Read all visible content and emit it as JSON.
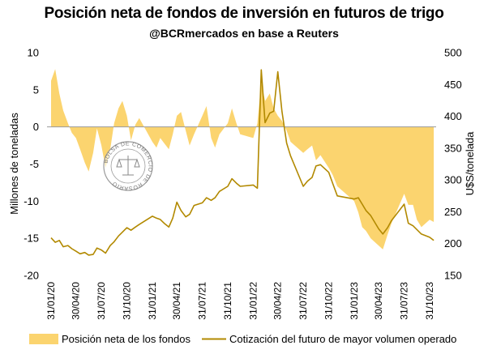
{
  "chart_data": {
    "type": "area+line",
    "title": "Posición neta de fondos de inversión en futuros de trigo",
    "subtitle": "@BCRmercados en base a Reuters",
    "ylabel_left": "Millones de toneladas",
    "ylabel_right": "U$S/tonelada",
    "ylim_left": [
      -20,
      10
    ],
    "ylim_right": [
      150,
      500
    ],
    "yticks_left": [
      "10",
      "5",
      "0",
      "-5",
      "-10",
      "-15",
      "-20"
    ],
    "yticks_right": [
      "500",
      "450",
      "400",
      "350",
      "300",
      "250",
      "200",
      "150"
    ],
    "xtick_labels": [
      "31/01/20",
      "30/04/20",
      "31/07/20",
      "31/10/20",
      "31/01/21",
      "30/04/21",
      "31/07/21",
      "31/10/21",
      "31/01/22",
      "30/04/22",
      "31/07/22",
      "31/10/22",
      "31/01/23",
      "30/04/23",
      "31/07/23",
      "31/10/23"
    ],
    "grid": false,
    "legend_position": "bottom",
    "colors": {
      "fill": "#FBD46F",
      "line": "#B28900"
    },
    "series": [
      {
        "name": "Posición neta de los fondos",
        "type": "area",
        "axis": "left",
        "points": [
          [
            "31/01/20",
            6.2
          ],
          [
            "15/02/20",
            7.8
          ],
          [
            "01/03/20",
            4.5
          ],
          [
            "15/03/20",
            2.2
          ],
          [
            "01/04/20",
            0.5
          ],
          [
            "15/04/20",
            -0.8
          ],
          [
            "30/04/20",
            -1.5
          ],
          [
            "15/05/20",
            -3.0
          ],
          [
            "01/06/20",
            -4.8
          ],
          [
            "15/06/20",
            -6.0
          ],
          [
            "01/07/20",
            -3.5
          ],
          [
            "15/07/20",
            -0.2
          ],
          [
            "31/07/20",
            -2.5
          ],
          [
            "15/08/20",
            -5.5
          ],
          [
            "01/09/20",
            -3.0
          ],
          [
            "15/09/20",
            0.5
          ],
          [
            "01/10/20",
            2.5
          ],
          [
            "15/10/20",
            3.5
          ],
          [
            "31/10/20",
            1.5
          ],
          [
            "15/11/20",
            -1.8
          ],
          [
            "01/12/20",
            0.3
          ],
          [
            "15/12/20",
            1.2
          ],
          [
            "31/01/21",
            -2.0
          ],
          [
            "15/02/21",
            -2.8
          ],
          [
            "01/03/21",
            -1.5
          ],
          [
            "15/03/21",
            -2.2
          ],
          [
            "01/04/21",
            -3.0
          ],
          [
            "15/04/21",
            -1.0
          ],
          [
            "30/04/21",
            1.5
          ],
          [
            "15/05/21",
            2.0
          ],
          [
            "01/06/21",
            -0.5
          ],
          [
            "15/06/21",
            -2.5
          ],
          [
            "01/07/21",
            -1.0
          ],
          [
            "31/07/21",
            1.5
          ],
          [
            "15/08/21",
            2.8
          ],
          [
            "01/09/21",
            -1.5
          ],
          [
            "15/09/21",
            -2.8
          ],
          [
            "01/10/21",
            -1.0
          ],
          [
            "31/10/21",
            0.5
          ],
          [
            "15/11/21",
            2.5
          ],
          [
            "01/12/21",
            0.5
          ],
          [
            "15/12/21",
            -1.0
          ],
          [
            "31/01/22",
            -1.5
          ],
          [
            "15/02/22",
            0.5
          ],
          [
            "01/03/22",
            6.0
          ],
          [
            "15/03/22",
            3.5
          ],
          [
            "01/04/22",
            4.5
          ],
          [
            "15/04/22",
            2.5
          ],
          [
            "30/04/22",
            1.5
          ],
          [
            "15/05/22",
            0.8
          ],
          [
            "01/06/22",
            -0.5
          ],
          [
            "15/06/22",
            -2.0
          ],
          [
            "31/07/22",
            -3.5
          ],
          [
            "15/08/22",
            -3.0
          ],
          [
            "01/09/22",
            -2.5
          ],
          [
            "15/09/22",
            -4.5
          ],
          [
            "01/10/22",
            -3.8
          ],
          [
            "31/10/22",
            -5.5
          ],
          [
            "15/11/22",
            -6.5
          ],
          [
            "01/12/22",
            -8.0
          ],
          [
            "31/01/23",
            -10.0
          ],
          [
            "15/02/23",
            -11.5
          ],
          [
            "01/03/23",
            -13.5
          ],
          [
            "15/03/23",
            -14.0
          ],
          [
            "01/04/23",
            -15.0
          ],
          [
            "30/04/23",
            -16.0
          ],
          [
            "15/05/23",
            -16.5
          ],
          [
            "01/06/23",
            -14.5
          ],
          [
            "15/06/23",
            -13.0
          ],
          [
            "31/07/23",
            -9.0
          ],
          [
            "15/08/23",
            -10.5
          ],
          [
            "01/09/23",
            -10.5
          ],
          [
            "15/09/23",
            -12.5
          ],
          [
            "01/10/23",
            -13.5
          ],
          [
            "31/10/23",
            -12.5
          ],
          [
            "15/11/23",
            -12.8
          ]
        ]
      },
      {
        "name": "Cotización del futuro de mayor volumen operado",
        "type": "line",
        "axis": "right",
        "points": [
          [
            "31/01/20",
            209
          ],
          [
            "15/02/20",
            202
          ],
          [
            "01/03/20",
            205
          ],
          [
            "15/03/20",
            195
          ],
          [
            "01/04/20",
            197
          ],
          [
            "15/04/20",
            192
          ],
          [
            "30/04/20",
            188
          ],
          [
            "15/05/20",
            184
          ],
          [
            "01/06/20",
            186
          ],
          [
            "15/06/20",
            182
          ],
          [
            "01/07/20",
            183
          ],
          [
            "15/07/20",
            193
          ],
          [
            "31/07/20",
            190
          ],
          [
            "15/08/20",
            185
          ],
          [
            "01/09/20",
            197
          ],
          [
            "15/09/20",
            203
          ],
          [
            "01/10/20",
            212
          ],
          [
            "15/10/20",
            218
          ],
          [
            "31/10/20",
            225
          ],
          [
            "15/11/20",
            221
          ],
          [
            "01/12/20",
            226
          ],
          [
            "15/12/20",
            230
          ],
          [
            "31/01/21",
            243
          ],
          [
            "15/02/21",
            240
          ],
          [
            "01/03/21",
            238
          ],
          [
            "15/03/21",
            232
          ],
          [
            "01/04/21",
            226
          ],
          [
            "15/04/21",
            240
          ],
          [
            "30/04/21",
            265
          ],
          [
            "15/05/21",
            252
          ],
          [
            "01/06/21",
            242
          ],
          [
            "15/06/21",
            246
          ],
          [
            "01/07/21",
            260
          ],
          [
            "31/07/21",
            264
          ],
          [
            "15/08/21",
            272
          ],
          [
            "01/09/21",
            268
          ],
          [
            "15/09/21",
            272
          ],
          [
            "01/10/21",
            282
          ],
          [
            "31/10/21",
            290
          ],
          [
            "15/11/21",
            302
          ],
          [
            "01/12/21",
            295
          ],
          [
            "15/12/21",
            290
          ],
          [
            "31/01/22",
            292
          ],
          [
            "15/02/22",
            287
          ],
          [
            "01/03/22",
            473
          ],
          [
            "15/03/22",
            390
          ],
          [
            "01/04/22",
            405
          ],
          [
            "15/04/22",
            408
          ],
          [
            "30/04/22",
            470
          ],
          [
            "15/05/22",
            408
          ],
          [
            "01/06/22",
            358
          ],
          [
            "15/06/22",
            338
          ],
          [
            "31/07/22",
            290
          ],
          [
            "15/08/22",
            298
          ],
          [
            "01/09/22",
            304
          ],
          [
            "15/09/22",
            322
          ],
          [
            "01/10/22",
            324
          ],
          [
            "31/10/22",
            312
          ],
          [
            "15/11/22",
            294
          ],
          [
            "01/12/22",
            275
          ],
          [
            "31/01/23",
            270
          ],
          [
            "15/02/23",
            272
          ],
          [
            "01/03/23",
            262
          ],
          [
            "15/03/23",
            252
          ],
          [
            "01/04/23",
            244
          ],
          [
            "30/04/23",
            223
          ],
          [
            "15/05/23",
            215
          ],
          [
            "01/06/23",
            225
          ],
          [
            "15/06/23",
            236
          ],
          [
            "31/07/23",
            262
          ],
          [
            "15/08/23",
            232
          ],
          [
            "01/09/23",
            228
          ],
          [
            "15/09/23",
            222
          ],
          [
            "01/10/23",
            215
          ],
          [
            "31/10/23",
            210
          ],
          [
            "15/11/23",
            205
          ]
        ]
      }
    ]
  },
  "watermark": {
    "text": "BOLSA DE COMERCIO DE ROSARIO",
    "icon": "scales-of-justice-icon"
  }
}
